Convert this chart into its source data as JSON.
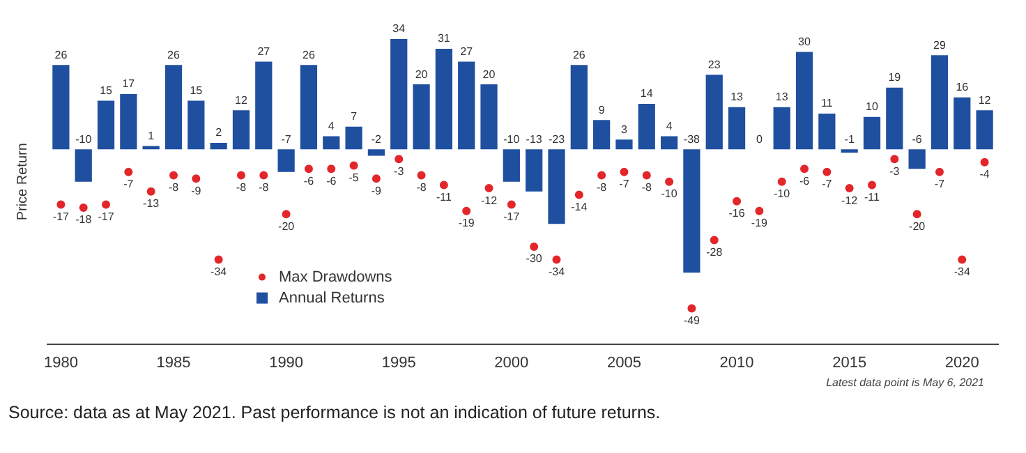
{
  "chart_data": {
    "type": "bar",
    "ylabel": "Price Return",
    "x": [
      1980,
      1981,
      1982,
      1983,
      1984,
      1985,
      1986,
      1987,
      1988,
      1989,
      1990,
      1991,
      1992,
      1993,
      1994,
      1995,
      1996,
      1997,
      1998,
      1999,
      2000,
      2001,
      2002,
      2003,
      2004,
      2005,
      2006,
      2007,
      2008,
      2009,
      2010,
      2011,
      2012,
      2013,
      2014,
      2015,
      2016,
      2017,
      2018,
      2019,
      2020,
      2021
    ],
    "series": [
      {
        "name": "Max Drawdowns",
        "type": "scatter",
        "color": "#e3262a",
        "values": [
          -17,
          -18,
          -17,
          -7,
          -13,
          -8,
          -9,
          -34,
          -8,
          -8,
          -20,
          -6,
          -6,
          -5,
          -9,
          -3,
          -8,
          -11,
          -19,
          -12,
          -17,
          -30,
          -34,
          -14,
          -8,
          -7,
          -8,
          -10,
          -49,
          -28,
          -16,
          -19,
          -10,
          -6,
          -7,
          -12,
          -11,
          -3,
          -20,
          -7,
          -34,
          -4
        ]
      },
      {
        "name": "Annual Returns",
        "color": "#1f4f9f",
        "values": [
          26,
          -10,
          15,
          17,
          1,
          26,
          15,
          2,
          12,
          27,
          -7,
          26,
          4,
          7,
          -2,
          34,
          20,
          31,
          27,
          20,
          -10,
          -13,
          -23,
          26,
          9,
          3,
          14,
          4,
          -38,
          23,
          13,
          0,
          13,
          30,
          11,
          -1,
          10,
          19,
          -6,
          29,
          16,
          12
        ]
      }
    ],
    "xlim": [
      1979.4,
      2021.6
    ],
    "xticks": [
      1980,
      1985,
      1990,
      1995,
      2000,
      2005,
      2010,
      2015,
      2020
    ],
    "tick_labels": "x",
    "grid": false,
    "legend": "bottom left",
    "marker": "circle",
    "data_labels": true,
    "annotations": [
      "Latest data point is May 6, 2021",
      "Source: data as at May 2021. Past performance is not an indication of future returns."
    ]
  }
}
